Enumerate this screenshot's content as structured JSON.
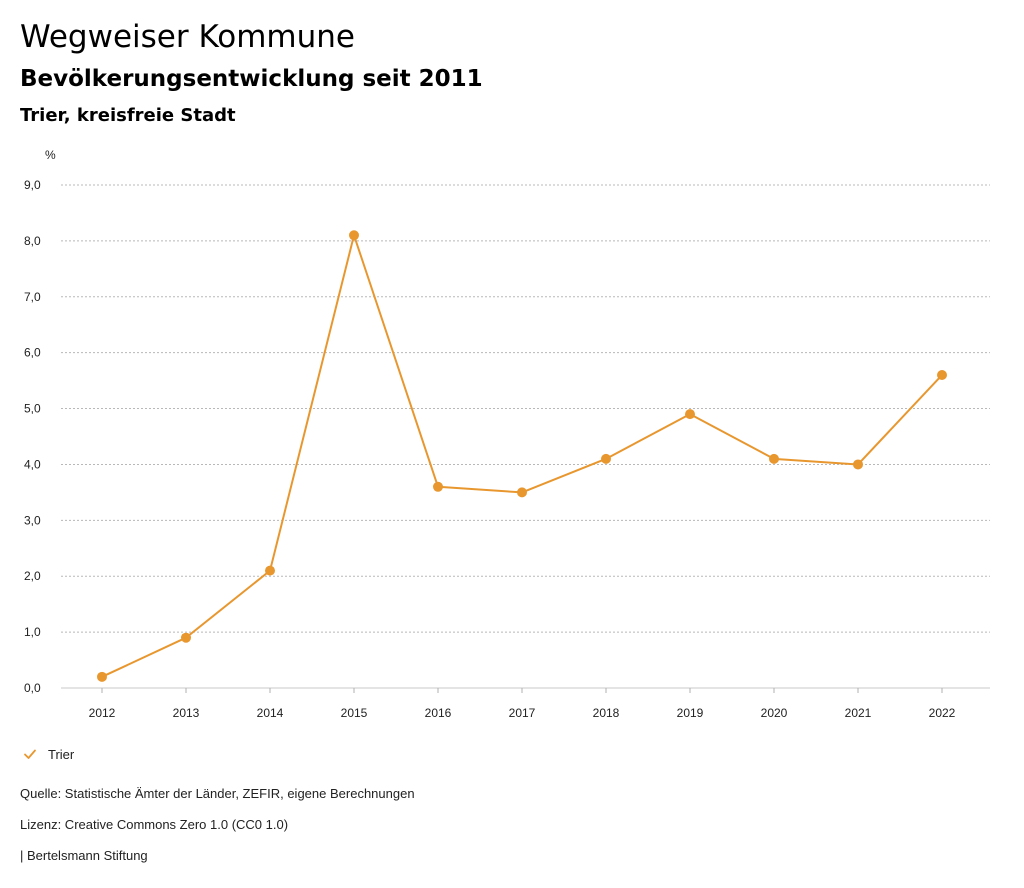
{
  "header": {
    "title": "Wegweiser Kommune",
    "subtitle": "Bevölkerungsentwicklung seit 2011",
    "region": "Trier, kreisfreie Stadt"
  },
  "chart_data": {
    "type": "line",
    "ylabel": "%",
    "xlabel": "",
    "x": [
      "2012",
      "2013",
      "2014",
      "2015",
      "2016",
      "2017",
      "2018",
      "2019",
      "2020",
      "2021",
      "2022"
    ],
    "yticks": [
      "0,0",
      "1,0",
      "2,0",
      "3,0",
      "4,0",
      "5,0",
      "6,0",
      "7,0",
      "8,0",
      "9,0"
    ],
    "ylim": [
      0,
      9
    ],
    "grid": true,
    "legend_position": "bottom-left",
    "series": [
      {
        "name": "Trier",
        "color": "#e8972f",
        "values": [
          0.2,
          0.9,
          2.1,
          8.1,
          3.6,
          3.5,
          4.1,
          4.9,
          4.1,
          4.0,
          5.6
        ]
      }
    ]
  },
  "legend": {
    "label": "Trier",
    "icon": "check-icon"
  },
  "footer": {
    "source": "Quelle: Statistische Ämter der Länder, ZEFIR, eigene Berechnungen",
    "license": "Lizenz: Creative Commons Zero 1.0 (CC0 1.0)",
    "publisher": "| Bertelsmann Stiftung"
  }
}
